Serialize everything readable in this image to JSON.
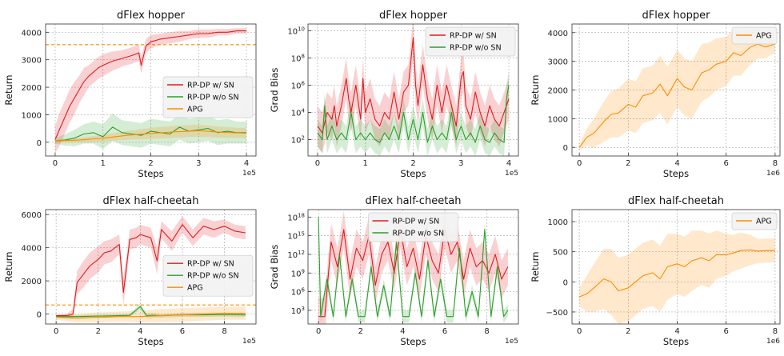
{
  "colors": {
    "rp_sn": "#e41a1c",
    "rp_nosn": "#2ca02c",
    "apg": "#ff8c00",
    "grid": "#b0b0b0"
  },
  "chart_data": [
    {
      "type": "line",
      "title": "dFlex hopper",
      "xlabel": "Steps",
      "ylabel": "Return",
      "x_offset_text": "1e5",
      "xlim": [
        -0.2,
        4.2
      ],
      "ylim": [
        -500,
        4300
      ],
      "xticks": [
        0,
        1,
        2,
        3,
        4
      ],
      "xtick_labels": [
        "0",
        "1",
        "2",
        "3",
        "4"
      ],
      "yticks": [
        0,
        1000,
        2000,
        3000,
        4000
      ],
      "ytick_labels": [
        "0",
        "1000",
        "2000",
        "3000",
        "4000"
      ],
      "legend_position": "center-right",
      "hline": {
        "y": 3550,
        "color": "apg"
      },
      "series": [
        {
          "name": "RP-DP w/ SN",
          "color": "rp_sn",
          "x": [
            0,
            0.1,
            0.2,
            0.3,
            0.4,
            0.5,
            0.6,
            0.7,
            0.8,
            0.9,
            1.0,
            1.2,
            1.4,
            1.6,
            1.75,
            1.8,
            1.9,
            2.0,
            2.2,
            2.4,
            2.6,
            2.8,
            3.0,
            3.2,
            3.4,
            3.6,
            3.8,
            4.0
          ],
          "y": [
            100,
            500,
            900,
            1300,
            1600,
            1900,
            2200,
            2400,
            2550,
            2700,
            2800,
            2950,
            3050,
            3150,
            3250,
            2800,
            3500,
            3650,
            3750,
            3800,
            3850,
            3900,
            3950,
            3950,
            4000,
            4000,
            4050,
            4050
          ],
          "band": [
            500,
            600,
            600,
            600,
            600,
            500,
            500,
            400,
            400,
            400,
            400,
            350,
            300,
            300,
            300,
            300,
            250,
            250,
            200,
            200,
            200,
            150,
            150,
            150,
            120,
            120,
            100,
            100
          ]
        },
        {
          "name": "RP-DP w/o SN",
          "color": "rp_nosn",
          "x": [
            0,
            0.2,
            0.4,
            0.6,
            0.8,
            1.0,
            1.2,
            1.4,
            1.6,
            1.8,
            2.0,
            2.2,
            2.4,
            2.6,
            2.8,
            3.0,
            3.2,
            3.4,
            3.6,
            3.8,
            4.0
          ],
          "y": [
            50,
            80,
            150,
            300,
            350,
            200,
            550,
            350,
            300,
            250,
            400,
            350,
            300,
            550,
            400,
            450,
            500,
            350,
            400,
            350,
            350
          ],
          "band": [
            100,
            200,
            300,
            350,
            400,
            450,
            500,
            450,
            450,
            450,
            450,
            450,
            450,
            450,
            450,
            450,
            450,
            450,
            450,
            400,
            400
          ]
        },
        {
          "name": "APG",
          "color": "apg",
          "x": [
            0,
            0.5,
            1.0,
            1.5,
            2.0,
            2.5,
            3.0,
            3.5,
            4.0
          ],
          "y": [
            50,
            80,
            150,
            250,
            320,
            380,
            420,
            360,
            330
          ],
          "band": [
            50,
            80,
            120,
            160,
            200,
            220,
            220,
            200,
            180
          ]
        }
      ]
    },
    {
      "type": "line",
      "title": "dFlex hopper",
      "xlabel": "Steps",
      "ylabel": "Grad Bias",
      "x_offset_text": "1e5",
      "y_scale": "log",
      "xlim": [
        -0.2,
        4.2
      ],
      "ylim_log10": [
        0.8,
        10.5
      ],
      "xticks": [
        0,
        1,
        2,
        3,
        4
      ],
      "xtick_labels": [
        "0",
        "1",
        "2",
        "3",
        "4"
      ],
      "ytick_exponents": [
        2,
        4,
        6,
        8,
        10
      ],
      "ytick_base": "10",
      "legend_position": "top-right",
      "series": [
        {
          "name": "RP-DP w/ SN",
          "color": "rp_sn",
          "x": [
            0,
            0.1,
            0.2,
            0.3,
            0.35,
            0.4,
            0.5,
            0.6,
            0.65,
            0.7,
            0.8,
            0.9,
            0.95,
            1.0,
            1.1,
            1.2,
            1.3,
            1.4,
            1.5,
            1.6,
            1.7,
            1.8,
            1.9,
            2.0,
            2.05,
            2.1,
            2.2,
            2.3,
            2.4,
            2.5,
            2.6,
            2.7,
            2.8,
            2.9,
            3.0,
            3.05,
            3.1,
            3.2,
            3.3,
            3.4,
            3.5,
            3.6,
            3.7,
            3.8,
            3.9,
            4.0
          ],
          "log10y": [
            3.0,
            2.5,
            4.0,
            3.5,
            4.5,
            3.0,
            4.5,
            6.5,
            5.0,
            4.0,
            6.0,
            3.5,
            6.5,
            4.0,
            5.0,
            3.5,
            3.0,
            4.0,
            3.5,
            5.5,
            3.5,
            5.5,
            6.0,
            9.5,
            6.0,
            4.5,
            7.5,
            5.0,
            3.5,
            6.0,
            4.0,
            6.0,
            4.5,
            3.0,
            6.5,
            7.0,
            4.5,
            3.5,
            5.5,
            4.0,
            3.0,
            4.5,
            3.5,
            3.0,
            4.0,
            5.0
          ],
          "band_log10": 1.5
        },
        {
          "name": "RP-DP w/o SN",
          "color": "rp_nosn",
          "x": [
            0,
            0.1,
            0.15,
            0.2,
            0.3,
            0.4,
            0.5,
            0.6,
            0.7,
            0.8,
            0.9,
            1.0,
            1.1,
            1.2,
            1.3,
            1.4,
            1.5,
            1.6,
            1.7,
            1.8,
            1.9,
            2.0,
            2.1,
            2.2,
            2.3,
            2.4,
            2.5,
            2.6,
            2.7,
            2.8,
            2.9,
            3.0,
            3.1,
            3.2,
            3.3,
            3.4,
            3.5,
            3.6,
            3.7,
            3.8,
            3.9,
            3.95,
            4.0
          ],
          "log10y": [
            2.5,
            2.0,
            4.5,
            2.0,
            3.0,
            2.0,
            2.5,
            2.0,
            4.0,
            2.0,
            2.5,
            2.0,
            2.5,
            2.0,
            1.8,
            2.5,
            2.0,
            3.0,
            2.0,
            4.0,
            2.0,
            3.5,
            2.0,
            4.0,
            1.8,
            3.0,
            2.0,
            2.5,
            2.0,
            4.0,
            2.0,
            3.0,
            2.0,
            2.5,
            1.8,
            3.0,
            2.0,
            1.8,
            2.5,
            2.0,
            1.8,
            5.0,
            6.0
          ],
          "band_log10": 1.0
        }
      ]
    },
    {
      "type": "line",
      "title": "dFlex hopper",
      "xlabel": "Steps",
      "ylabel": "Return",
      "x_offset_text": "1e6",
      "xlim": [
        -0.3,
        8.2
      ],
      "ylim": [
        -300,
        4300
      ],
      "xticks": [
        0,
        2,
        4,
        6,
        8
      ],
      "xtick_labels": [
        "0",
        "2",
        "4",
        "6",
        "8"
      ],
      "yticks": [
        0,
        1000,
        2000,
        3000,
        4000
      ],
      "ytick_labels": [
        "0",
        "1000",
        "2000",
        "3000",
        "4000"
      ],
      "legend_position": "top-right",
      "series": [
        {
          "name": "APG",
          "color": "apg",
          "x": [
            0,
            0.3,
            0.6,
            1.0,
            1.3,
            1.6,
            2.0,
            2.3,
            2.6,
            3.0,
            3.3,
            3.6,
            4.0,
            4.3,
            4.6,
            5.0,
            5.3,
            5.6,
            6.0,
            6.3,
            6.6,
            7.0,
            7.3,
            7.6,
            8.0
          ],
          "y": [
            0,
            350,
            500,
            900,
            1150,
            1200,
            1500,
            1400,
            1800,
            1900,
            2200,
            1800,
            2400,
            2100,
            2000,
            2600,
            2700,
            2900,
            3000,
            3300,
            3200,
            3500,
            3600,
            3500,
            3600
          ],
          "band": [
            100,
            300,
            500,
            700,
            800,
            850,
            900,
            900,
            950,
            950,
            1000,
            1000,
            1000,
            1000,
            1000,
            1000,
            950,
            900,
            850,
            800,
            700,
            600,
            500,
            400,
            300
          ]
        }
      ]
    },
    {
      "type": "line",
      "title": "dFlex half-cheetah",
      "xlabel": "Steps",
      "ylabel": "Return",
      "x_offset_text": "1e5",
      "xlim": [
        -0.5,
        9.5
      ],
      "ylim": [
        -600,
        6300
      ],
      "xticks": [
        0,
        2,
        4,
        6,
        8
      ],
      "xtick_labels": [
        "0",
        "2",
        "4",
        "6",
        "8"
      ],
      "yticks": [
        0,
        2000,
        4000,
        6000
      ],
      "ytick_labels": [
        "0",
        "2000",
        "4000",
        "6000"
      ],
      "legend_position": "center-right",
      "hline": {
        "y": 550,
        "color": "apg"
      },
      "series": [
        {
          "name": "RP-DP w/ SN",
          "color": "rp_sn",
          "x": [
            0,
            0.5,
            0.8,
            1.0,
            1.3,
            1.6,
            2.0,
            2.3,
            2.6,
            3.0,
            3.2,
            3.5,
            3.8,
            4.0,
            4.5,
            4.8,
            5.0,
            5.5,
            6.0,
            6.5,
            7.0,
            7.5,
            8.0,
            8.5,
            9.0
          ],
          "y": [
            -100,
            -100,
            0,
            1900,
            2400,
            2900,
            3300,
            3700,
            3800,
            4200,
            1300,
            4500,
            4600,
            4800,
            4600,
            3200,
            5100,
            4400,
            5400,
            4600,
            5300,
            5100,
            5300,
            5000,
            4900
          ],
          "band": [
            50,
            100,
            300,
            700,
            800,
            800,
            800,
            700,
            700,
            600,
            800,
            600,
            600,
            600,
            600,
            800,
            500,
            600,
            500,
            500,
            500,
            500,
            400,
            400,
            400
          ]
        },
        {
          "name": "RP-DP w/o SN",
          "color": "rp_nosn",
          "x": [
            0,
            1,
            2,
            3,
            3.5,
            4.0,
            4.3,
            4.6,
            5,
            6,
            7,
            8,
            9
          ],
          "y": [
            -150,
            -150,
            -120,
            -100,
            -80,
            450,
            -100,
            -80,
            -100,
            -50,
            -50,
            -30,
            -50
          ],
          "band": [
            50,
            80,
            80,
            100,
            100,
            200,
            150,
            150,
            120,
            120,
            120,
            120,
            120
          ]
        },
        {
          "name": "APG",
          "color": "apg",
          "x": [
            0,
            1,
            2,
            3,
            4,
            5,
            6,
            7,
            8,
            9
          ],
          "y": [
            -200,
            -250,
            -200,
            -150,
            -150,
            -100,
            -50,
            0,
            50,
            50
          ],
          "band": [
            150,
            250,
            300,
            300,
            350,
            400,
            400,
            400,
            400,
            400
          ]
        }
      ]
    },
    {
      "type": "line",
      "title": "dFlex half-cheetah",
      "xlabel": "Steps",
      "ylabel": "Grad Bias",
      "x_offset_text": "1e5",
      "y_scale": "log",
      "xlim": [
        -0.5,
        9.5
      ],
      "ylim_log10": [
        0.8,
        19.2
      ],
      "xticks": [
        0,
        2,
        4,
        6,
        8
      ],
      "xtick_labels": [
        "0",
        "2",
        "4",
        "6",
        "8"
      ],
      "ytick_exponents": [
        3,
        6,
        9,
        12,
        15,
        18
      ],
      "ytick_base": "10",
      "legend_position": "top-center",
      "series": [
        {
          "name": "RP-DP w/ SN",
          "color": "rp_sn",
          "x": [
            0,
            0.3,
            0.6,
            0.9,
            1.2,
            1.5,
            1.8,
            2.1,
            2.4,
            2.7,
            3.0,
            3.3,
            3.6,
            3.9,
            4.2,
            4.5,
            4.8,
            5.1,
            5.4,
            5.7,
            6.0,
            6.3,
            6.6,
            6.9,
            7.2,
            7.5,
            7.8,
            8.1,
            8.4,
            8.7,
            9.0
          ],
          "log10y": [
            2,
            2,
            14,
            10,
            16,
            8,
            13,
            11,
            15,
            7,
            12,
            14,
            9,
            16,
            10,
            13,
            8,
            15,
            11,
            9,
            16,
            12,
            14,
            8,
            13,
            10,
            11,
            9,
            12,
            8,
            10
          ],
          "band_log10": 3
        },
        {
          "name": "RP-DP w/o SN",
          "color": "rp_nosn",
          "x": [
            0,
            0.1,
            0.4,
            0.7,
            1.0,
            1.3,
            1.6,
            1.9,
            2.2,
            2.5,
            2.8,
            3.1,
            3.4,
            3.7,
            4.0,
            4.3,
            4.6,
            4.9,
            5.2,
            5.5,
            5.8,
            6.1,
            6.4,
            6.7,
            7.0,
            7.3,
            7.6,
            7.9,
            8.2,
            8.5,
            8.8,
            9.0
          ],
          "log10y": [
            18,
            2,
            8,
            2,
            12,
            2,
            8,
            2,
            2,
            10,
            2,
            7,
            2,
            14,
            2,
            2,
            9,
            2,
            11,
            2,
            8,
            2,
            2,
            13,
            2,
            6,
            2,
            16,
            2,
            10,
            2,
            3
          ],
          "band_log10": 1
        }
      ]
    },
    {
      "type": "line",
      "title": "dFlex half-cheetah",
      "xlabel": "Steps",
      "ylabel": "Return",
      "x_offset_text": "1e6",
      "xlim": [
        -0.3,
        8.2
      ],
      "ylim": [
        -700,
        1200
      ],
      "xticks": [
        0,
        2,
        4,
        6,
        8
      ],
      "xtick_labels": [
        "0",
        "2",
        "4",
        "6",
        "8"
      ],
      "yticks": [
        -500,
        0,
        500,
        1000
      ],
      "ytick_labels": [
        "−500",
        "0",
        "500",
        "1000"
      ],
      "legend_position": "top-right",
      "series": [
        {
          "name": "APG",
          "color": "apg",
          "x": [
            0,
            0.3,
            0.6,
            1.0,
            1.3,
            1.6,
            2.0,
            2.3,
            2.6,
            3.0,
            3.3,
            3.6,
            4.0,
            4.3,
            4.6,
            5.0,
            5.3,
            5.6,
            6.0,
            6.3,
            6.6,
            7.0,
            7.3,
            7.6,
            8.0
          ],
          "y": [
            -250,
            -200,
            -100,
            50,
            0,
            -150,
            -100,
            0,
            100,
            150,
            50,
            250,
            300,
            250,
            350,
            400,
            350,
            450,
            450,
            480,
            520,
            530,
            510,
            520,
            520
          ],
          "band": [
            150,
            300,
            400,
            500,
            550,
            550,
            550,
            550,
            550,
            550,
            550,
            550,
            500,
            500,
            500,
            450,
            450,
            400,
            350,
            300,
            300,
            250,
            200,
            200,
            200
          ]
        }
      ]
    }
  ]
}
